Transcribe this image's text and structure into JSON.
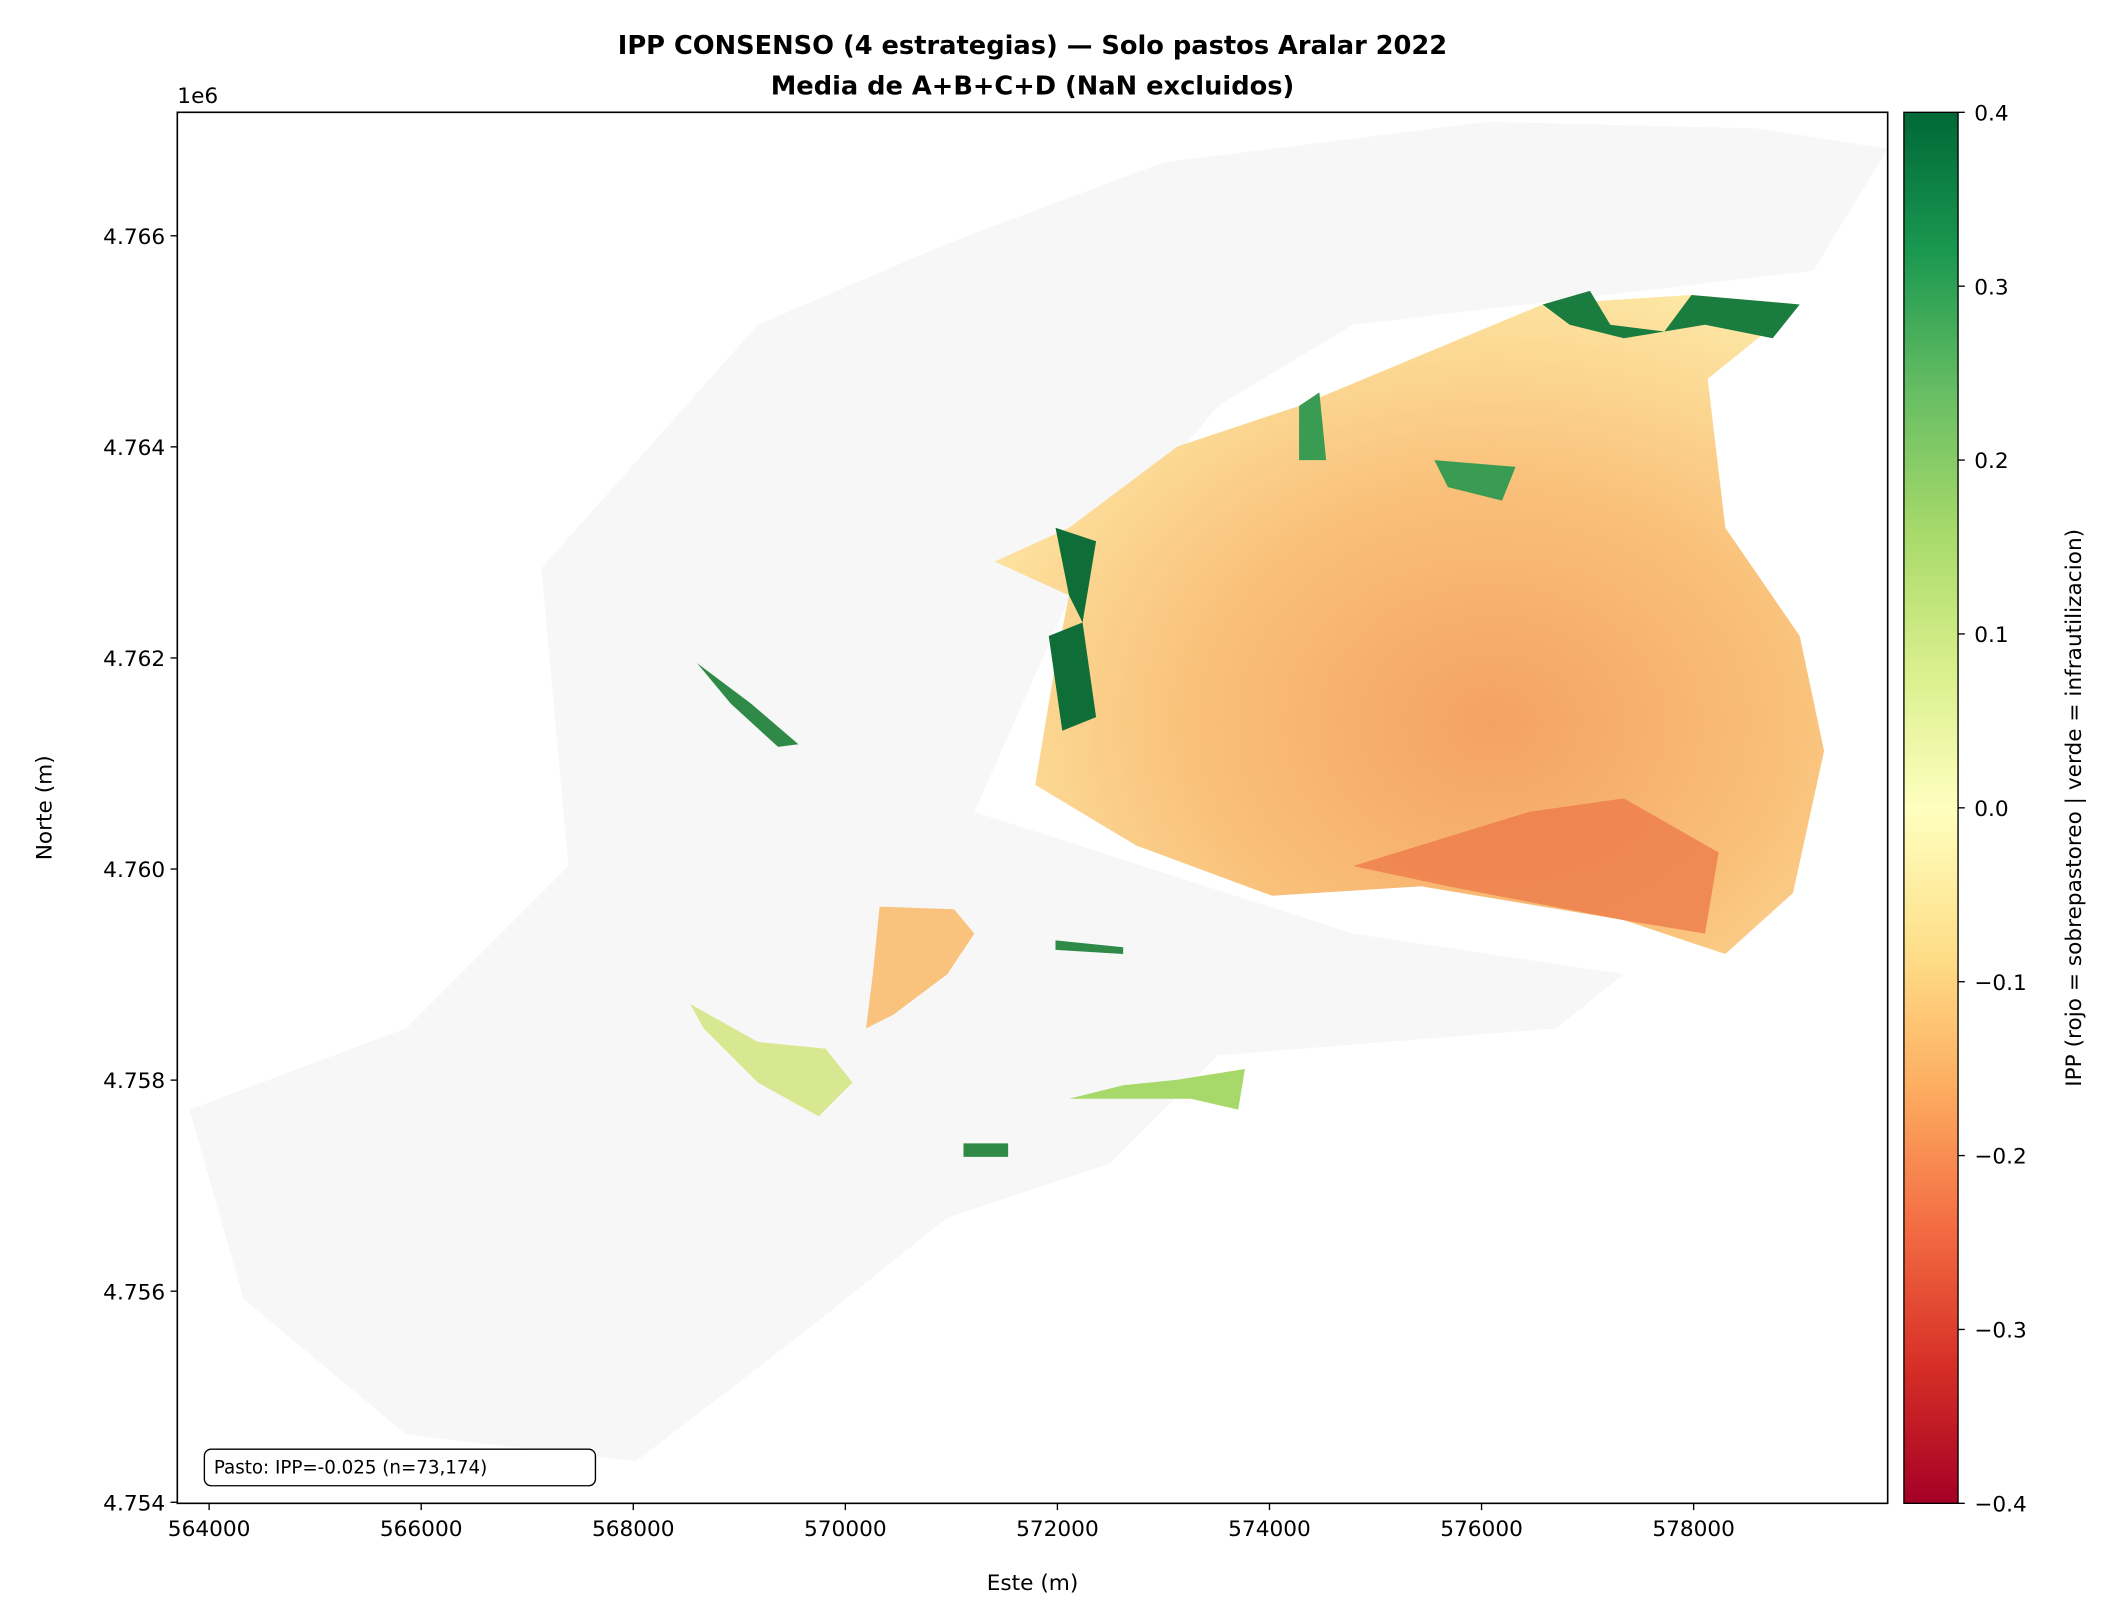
{
  "chart_data": {
    "type": "heatmap",
    "title": "IPP CONSENSO (4 estrategias) — Solo pastos Aralar 2022",
    "subtitle": "Media de A+B+C+D (NaN excluidos)",
    "x_label": "Este (m)",
    "y_label": "Norte (m)",
    "y_offset_label": "1e6",
    "xlim": [
      563700,
      579830
    ],
    "xticks": [
      564000,
      566000,
      568000,
      570000,
      572000,
      574000,
      576000,
      578000
    ],
    "ylim": [
      4.75399,
      4.76717
    ],
    "yticks": [
      4.754,
      4.756,
      4.758,
      {
        "value": 4.76,
        "label": "4.760"
      },
      4.762,
      4.764,
      4.766
    ],
    "colorbar_label": "IPP (rojo = sobrepastoreo | verde = infrautilizacion)",
    "colorbar_lim": [
      -0.4,
      0.4
    ],
    "colorbar_ticks": [
      {
        "value": -0.4,
        "label": "−0.4"
      },
      {
        "value": -0.3,
        "label": "−0.3"
      },
      {
        "value": -0.2,
        "label": "−0.2"
      },
      {
        "value": -0.1,
        "label": "−0.1"
      },
      {
        "value": 0,
        "label": "0.0"
      },
      0.1,
      0.2,
      0.3,
      0.4
    ],
    "annotation": "Pasto: IPP=-0.025 (n=73,174)"
  }
}
